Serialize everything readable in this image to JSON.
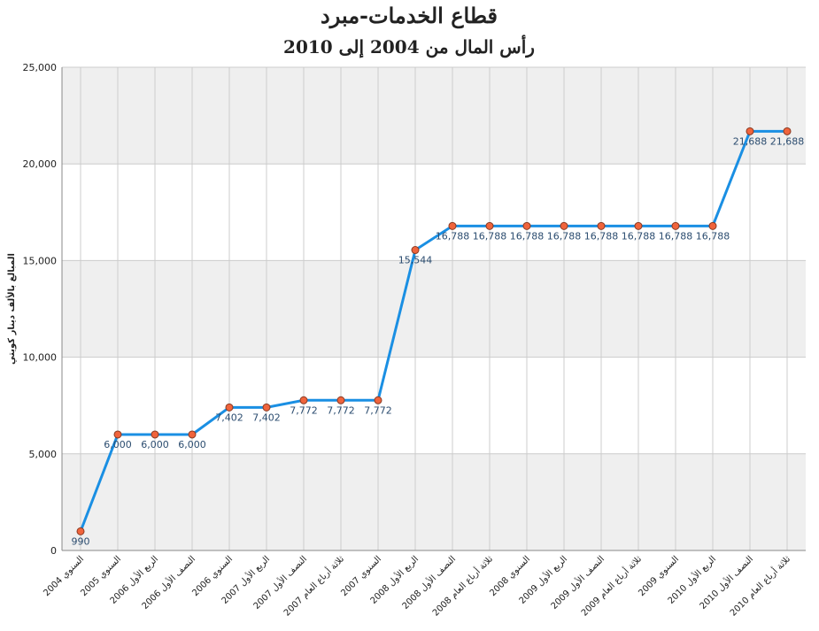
{
  "chart_data": {
    "type": "line",
    "title": "قطاع الخدمات-مبرد",
    "subtitle": "رأس المال من 2004 إلى 2010",
    "y_label": "المبالغ بالألف دينار كويتي",
    "categories": [
      "السنوي 2004",
      "السنوي 2005",
      "الربع الأول 2006",
      "النصف الأول 2006",
      "السنوي 2006",
      "الربع الأول 2007",
      "النصف الأول 2007",
      "ثلاثة أرباع العام 2007",
      "السنوي 2007",
      "الربع الأول 2008",
      "النصف الأول 2008",
      "ثلاثة أرباع العام 2008",
      "السنوي 2008",
      "الربع الأول 2009",
      "النصف الأول 2009",
      "ثلاثة أرباع العام 2009",
      "السنوي 2009",
      "الربع الأول 2010",
      "النصف الأول 2010",
      "ثلاثة أرباع العام 2010"
    ],
    "values": [
      990,
      6000,
      6000,
      6000,
      7402,
      7402,
      7772,
      7772,
      7772,
      15544,
      16788,
      16788,
      16788,
      16788,
      16788,
      16788,
      16788,
      16788,
      21688,
      21688
    ],
    "value_labels": [
      "990",
      "6,000",
      "6,000",
      "6,000",
      "7,402",
      "7,402",
      "7,772",
      "7,772",
      "7,772",
      "15,544",
      "16,788",
      "16,788",
      "16,788",
      "16,788",
      "16,788",
      "16,788",
      "16,788",
      "16,788",
      "21,688",
      "21,688"
    ],
    "color": "#1a8fe3",
    "marker_color": "#f0643c",
    "ylim": [
      0,
      25000
    ],
    "yticks": [
      0,
      {
        "value": 5000,
        "label": "5,000"
      },
      {
        "value": 10000,
        "label": "10,000"
      },
      {
        "value": 15000,
        "label": "15,000"
      },
      {
        "value": 20000,
        "label": "20,000"
      },
      {
        "value": 25000,
        "label": "25,000"
      }
    ],
    "grid": true
  }
}
